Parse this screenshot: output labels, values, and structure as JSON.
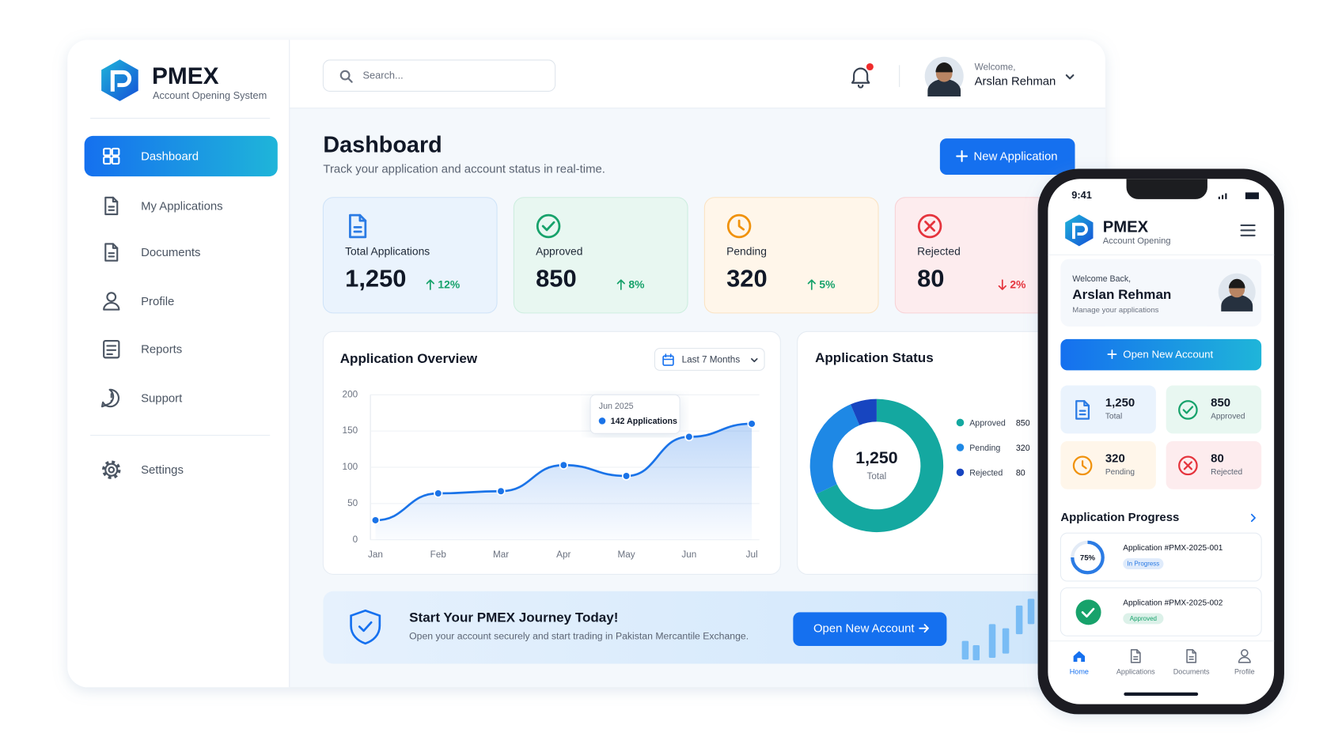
{
  "sidebar": {
    "brand": "PMEX",
    "tagline": "Account Opening System",
    "nav": [
      "Dashboard",
      "My Applications",
      "Documents",
      "Profile",
      "Reports",
      "Support"
    ],
    "settings": "Settings"
  },
  "header": {
    "search_placeholder": "Search...",
    "welcome": "Welcome,",
    "user": "Arslan Rehman"
  },
  "page": {
    "title": "Dashboard",
    "subtitle": "Track your application and account status in real-time.",
    "button": "New Application"
  },
  "stats": [
    {
      "label": "Total Applications",
      "value": "1,250",
      "change": "12%",
      "trend": "up",
      "color": "#2b7be4"
    },
    {
      "label": "Approved",
      "value": "850",
      "change": "8%",
      "trend": "up",
      "color": "#17a26b"
    },
    {
      "label": "Pending",
      "value": "320",
      "change": "5%",
      "trend": "up",
      "color": "#f0920c"
    },
    {
      "label": "Rejected",
      "value": "80",
      "change": "2%",
      "trend": "down",
      "color": "#e5343d"
    }
  ],
  "chart_data": [
    {
      "type": "line",
      "title": "Application Overview",
      "range_selector": "Last 7 Months",
      "categories": [
        "Jan",
        "Feb",
        "Mar",
        "Apr",
        "May",
        "Jun",
        "Jul"
      ],
      "values": [
        27,
        64,
        67,
        103,
        88,
        142,
        160
      ],
      "color": "#1a73e8",
      "ylim": [
        0,
        200
      ],
      "yticks": [
        0,
        50,
        100,
        150,
        200
      ],
      "grid": true,
      "tooltip": {
        "title": "Jun 2025",
        "label": "142 Applications"
      }
    },
    {
      "type": "pie",
      "donut": true,
      "title": "Application Status",
      "categories": [
        "Approved",
        "Pending",
        "Rejected"
      ],
      "values": [
        850,
        320,
        80
      ],
      "colors": [
        "#14a8a0",
        "#1e88e5",
        "#1745c0"
      ],
      "center_label": "Total"
    }
  ],
  "banner": {
    "title": "Start Your PMEX Journey Today!",
    "subtitle": "Open your account securely and start trading in Pakistan Mercantile Exchange.",
    "button": "Open New Account"
  },
  "phone": {
    "time": "9:41",
    "brand": "PMEX",
    "tagline": "Account Opening",
    "welcome": "Welcome Back,",
    "user": "Arslan Rehman",
    "note": "Manage your applications",
    "button": "Open New Account",
    "stat_labels": [
      "Total",
      "Approved",
      "Pending",
      "Rejected"
    ],
    "progress_title": "Application Progress",
    "applications": [
      {
        "title": "Application #PMX-2025-001",
        "status": "In Progress",
        "status_color": "#2b7be4",
        "progress": 75,
        "progress_label": "75%"
      },
      {
        "title": "Application #PMX-2025-002",
        "status": "Approved",
        "status_color": "#17a26b"
      }
    ],
    "tabs": [
      "Home",
      "Applications",
      "Documents",
      "Profile"
    ]
  }
}
